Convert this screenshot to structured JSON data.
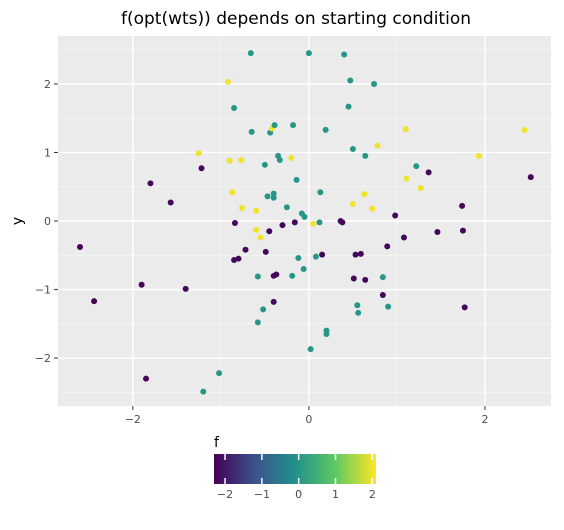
{
  "chart_data": {
    "type": "scatter",
    "title": "f(opt(wts)) depends on starting condition",
    "xlabel": "",
    "ylabel": "y",
    "xlim": [
      -2.85,
      2.75
    ],
    "ylim": [
      -2.7,
      2.7
    ],
    "xticks": [
      -2,
      0,
      2
    ],
    "yticks": [
      -2,
      -1,
      0,
      1,
      2
    ],
    "grid": true,
    "legend": {
      "title": "f",
      "position": "bottom",
      "ticks": [
        -2,
        -1,
        0,
        1,
        2
      ],
      "range": [
        -2.3,
        2.1
      ],
      "colormap": [
        "#440154",
        "#3b528b",
        "#21918c",
        "#5ec962",
        "#fde725"
      ]
    },
    "points": [
      {
        "x": -2.6,
        "y": -0.38,
        "f": -2.3
      },
      {
        "x": -2.44,
        "y": -1.17,
        "f": -2.3
      },
      {
        "x": -1.9,
        "y": -0.93,
        "f": -2.2
      },
      {
        "x": -1.85,
        "y": -2.3,
        "f": -2.2
      },
      {
        "x": -1.8,
        "y": 0.55,
        "f": -2.2
      },
      {
        "x": -1.57,
        "y": 0.27,
        "f": -2.2
      },
      {
        "x": -1.4,
        "y": -0.99,
        "f": -2.2
      },
      {
        "x": -1.25,
        "y": 0.99,
        "f": 2.0
      },
      {
        "x": -1.22,
        "y": 0.77,
        "f": -2.2
      },
      {
        "x": -1.2,
        "y": -2.49,
        "f": 0.0
      },
      {
        "x": -1.02,
        "y": -2.22,
        "f": 0.0
      },
      {
        "x": -0.92,
        "y": 2.03,
        "f": 2.0
      },
      {
        "x": -0.9,
        "y": 0.88,
        "f": 2.0
      },
      {
        "x": -0.87,
        "y": 0.42,
        "f": 2.0
      },
      {
        "x": -0.85,
        "y": -0.57,
        "f": -2.2
      },
      {
        "x": -0.84,
        "y": -0.03,
        "f": -2.2
      },
      {
        "x": -0.85,
        "y": 1.65,
        "f": 0.0
      },
      {
        "x": -0.8,
        "y": -0.55,
        "f": -2.2
      },
      {
        "x": -0.77,
        "y": 0.89,
        "f": 2.0
      },
      {
        "x": -0.76,
        "y": 0.19,
        "f": 2.0
      },
      {
        "x": -0.72,
        "y": -0.42,
        "f": -2.2
      },
      {
        "x": -0.66,
        "y": 2.45,
        "f": 0.0
      },
      {
        "x": -0.65,
        "y": 1.3,
        "f": 0.0
      },
      {
        "x": -0.6,
        "y": 0.15,
        "f": 2.0
      },
      {
        "x": -0.6,
        "y": -0.13,
        "f": 2.0
      },
      {
        "x": -0.58,
        "y": -0.81,
        "f": 0.0
      },
      {
        "x": -0.58,
        "y": -1.48,
        "f": 0.0
      },
      {
        "x": -0.55,
        "y": -0.24,
        "f": 2.0
      },
      {
        "x": -0.52,
        "y": -1.29,
        "f": 0.0
      },
      {
        "x": -0.5,
        "y": 0.82,
        "f": 0.0
      },
      {
        "x": -0.49,
        "y": -0.45,
        "f": -2.2
      },
      {
        "x": -0.47,
        "y": 0.36,
        "f": 0.0
      },
      {
        "x": -0.45,
        "y": -0.15,
        "f": -2.2
      },
      {
        "x": -0.44,
        "y": 1.29,
        "f": 0.0
      },
      {
        "x": -0.42,
        "y": 1.35,
        "f": 2.0
      },
      {
        "x": -0.4,
        "y": 0.34,
        "f": 0.0
      },
      {
        "x": -0.4,
        "y": 0.4,
        "f": 0.0
      },
      {
        "x": -0.4,
        "y": -1.18,
        "f": -2.2
      },
      {
        "x": -0.4,
        "y": -0.8,
        "f": -2.2
      },
      {
        "x": -0.39,
        "y": 1.4,
        "f": 0.0
      },
      {
        "x": -0.37,
        "y": -0.78,
        "f": -2.2
      },
      {
        "x": -0.35,
        "y": 0.95,
        "f": 0.0
      },
      {
        "x": -0.33,
        "y": 0.89,
        "f": 0.0
      },
      {
        "x": -0.3,
        "y": -0.06,
        "f": -2.2
      },
      {
        "x": -0.25,
        "y": 0.2,
        "f": 0.0
      },
      {
        "x": -0.2,
        "y": 0.92,
        "f": 2.0
      },
      {
        "x": -0.19,
        "y": -0.8,
        "f": 0.0
      },
      {
        "x": -0.18,
        "y": 1.4,
        "f": 0.0
      },
      {
        "x": -0.16,
        "y": -0.02,
        "f": -2.2
      },
      {
        "x": -0.14,
        "y": 0.6,
        "f": 0.0
      },
      {
        "x": -0.12,
        "y": -0.54,
        "f": 0.0
      },
      {
        "x": -0.08,
        "y": 0.11,
        "f": 0.0
      },
      {
        "x": -0.05,
        "y": 0.06,
        "f": 0.0
      },
      {
        "x": -0.06,
        "y": -0.7,
        "f": 0.0
      },
      {
        "x": 0.0,
        "y": 2.45,
        "f": 0.0
      },
      {
        "x": 0.02,
        "y": -1.87,
        "f": 0.0
      },
      {
        "x": 0.05,
        "y": -0.04,
        "f": 2.0
      },
      {
        "x": 0.08,
        "y": -0.52,
        "f": 0.0
      },
      {
        "x": 0.12,
        "y": -0.02,
        "f": 0.0
      },
      {
        "x": 0.13,
        "y": 0.42,
        "f": 0.0
      },
      {
        "x": 0.15,
        "y": -0.49,
        "f": -2.2
      },
      {
        "x": 0.19,
        "y": 1.33,
        "f": 0.0
      },
      {
        "x": 0.2,
        "y": -1.6,
        "f": 0.0
      },
      {
        "x": 0.2,
        "y": -1.65,
        "f": 0.0
      },
      {
        "x": 0.36,
        "y": 0.0,
        "f": -2.2
      },
      {
        "x": 0.38,
        "y": -0.02,
        "f": -2.2
      },
      {
        "x": 0.4,
        "y": 2.43,
        "f": 0.0
      },
      {
        "x": 0.45,
        "y": 1.67,
        "f": 0.0
      },
      {
        "x": 0.47,
        "y": 2.05,
        "f": 0.0
      },
      {
        "x": 0.5,
        "y": 1.05,
        "f": 0.0
      },
      {
        "x": 0.5,
        "y": 0.25,
        "f": 2.0
      },
      {
        "x": 0.51,
        "y": -0.84,
        "f": -2.2
      },
      {
        "x": 0.53,
        "y": -0.49,
        "f": -2.2
      },
      {
        "x": 0.55,
        "y": -1.23,
        "f": 0.0
      },
      {
        "x": 0.56,
        "y": -1.34,
        "f": 0.0
      },
      {
        "x": 0.59,
        "y": -0.48,
        "f": -2.2
      },
      {
        "x": 0.63,
        "y": 0.39,
        "f": 2.0
      },
      {
        "x": 0.64,
        "y": 0.95,
        "f": 0.0
      },
      {
        "x": 0.64,
        "y": -0.86,
        "f": -2.2
      },
      {
        "x": 0.72,
        "y": 0.18,
        "f": 2.0
      },
      {
        "x": 0.74,
        "y": 2.0,
        "f": 0.0
      },
      {
        "x": 0.78,
        "y": 1.1,
        "f": 2.0
      },
      {
        "x": 0.84,
        "y": -1.08,
        "f": -2.2
      },
      {
        "x": 0.84,
        "y": -0.82,
        "f": 0.0
      },
      {
        "x": 0.89,
        "y": -0.37,
        "f": -2.2
      },
      {
        "x": 0.9,
        "y": -1.25,
        "f": 0.0
      },
      {
        "x": 0.98,
        "y": 0.08,
        "f": -2.2
      },
      {
        "x": 1.08,
        "y": -0.24,
        "f": -2.2
      },
      {
        "x": 1.1,
        "y": 1.34,
        "f": 2.0
      },
      {
        "x": 1.11,
        "y": 0.62,
        "f": 2.0
      },
      {
        "x": 1.22,
        "y": 0.8,
        "f": 0.0
      },
      {
        "x": 1.27,
        "y": 0.48,
        "f": 2.0
      },
      {
        "x": 1.36,
        "y": 0.71,
        "f": -2.2
      },
      {
        "x": 1.46,
        "y": -0.16,
        "f": -2.2
      },
      {
        "x": 1.74,
        "y": 0.22,
        "f": -2.2
      },
      {
        "x": 1.75,
        "y": -0.14,
        "f": -2.2
      },
      {
        "x": 1.77,
        "y": -1.26,
        "f": -2.2
      },
      {
        "x": 1.93,
        "y": 0.95,
        "f": 2.0
      },
      {
        "x": 2.45,
        "y": 1.33,
        "f": 2.0
      },
      {
        "x": 2.52,
        "y": 0.64,
        "f": -2.2
      }
    ]
  }
}
